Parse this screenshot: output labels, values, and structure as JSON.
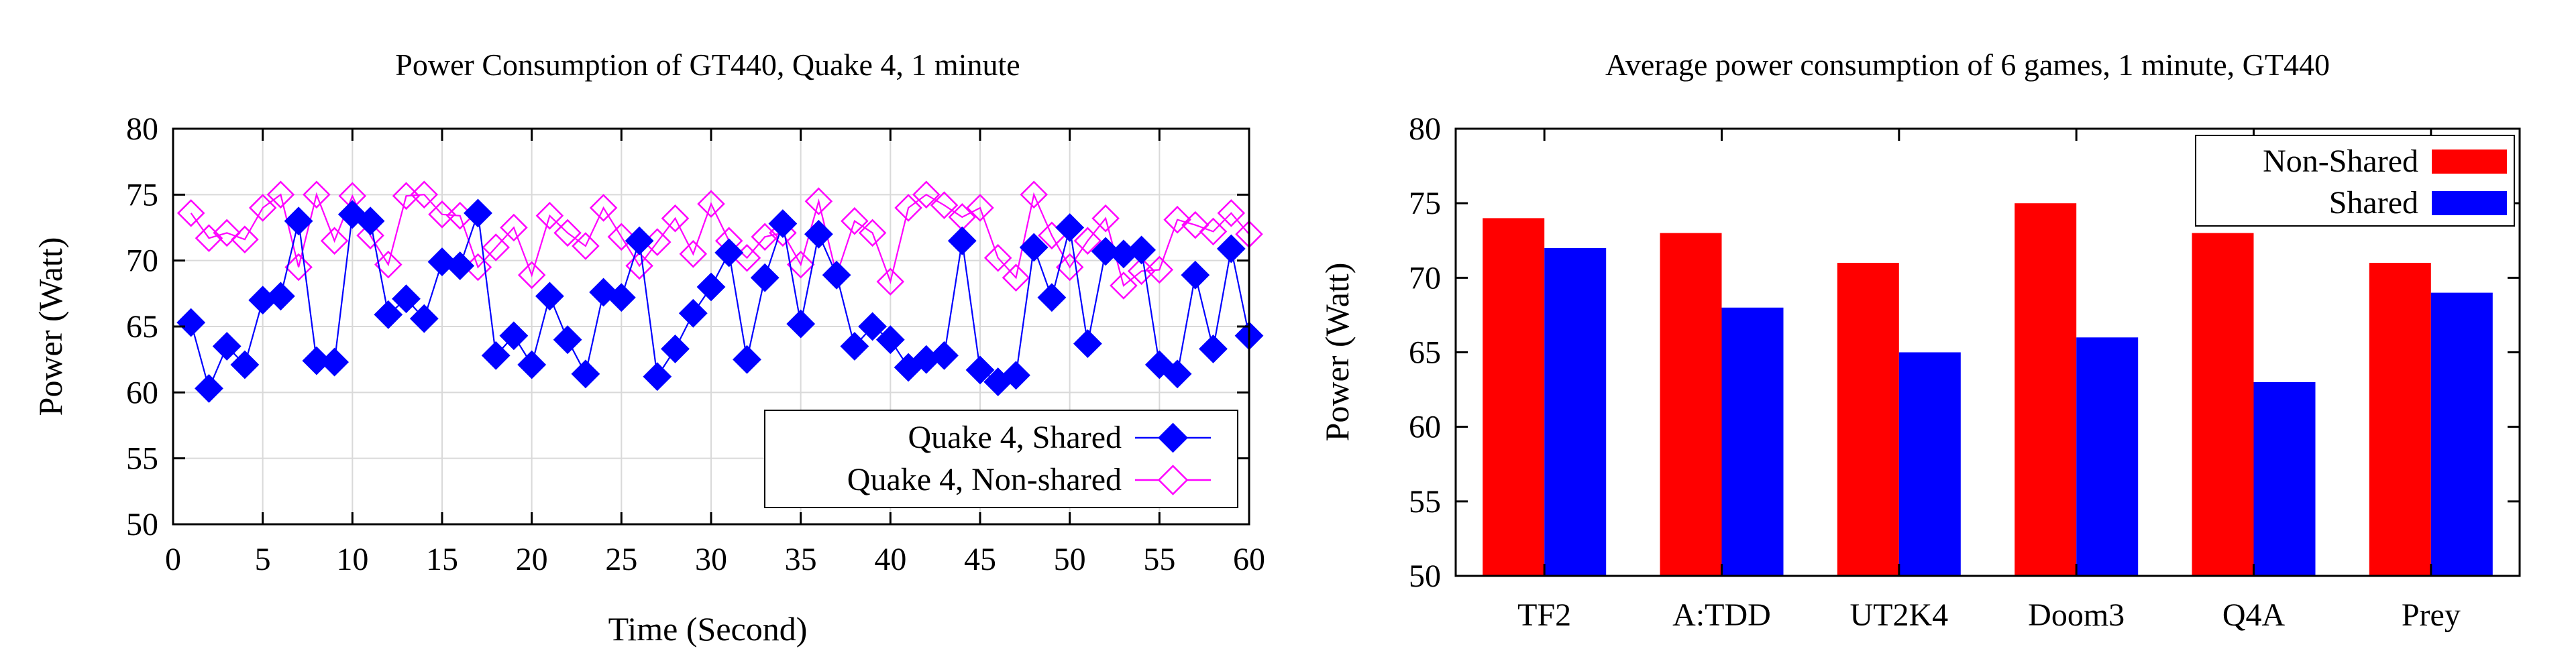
{
  "chart_data": [
    {
      "type": "line",
      "title": "Power Consumption of GT440, Quake 4, 1 minute",
      "xlabel": "Time (Second)",
      "ylabel": "Power (Watt)",
      "xlim": [
        0,
        60
      ],
      "ylim": [
        50,
        80
      ],
      "xticks": [
        0,
        5,
        10,
        15,
        20,
        25,
        30,
        35,
        40,
        45,
        50,
        55,
        60
      ],
      "yticks": [
        50,
        55,
        60,
        65,
        70,
        75,
        80
      ],
      "grid": true,
      "legend_position": "bottom-right",
      "x": [
        1,
        2,
        3,
        4,
        5,
        6,
        7,
        8,
        9,
        10,
        11,
        12,
        13,
        14,
        15,
        16,
        17,
        18,
        19,
        20,
        21,
        22,
        23,
        24,
        25,
        26,
        27,
        28,
        29,
        30,
        31,
        32,
        33,
        34,
        35,
        36,
        37,
        38,
        39,
        40,
        41,
        42,
        43,
        44,
        45,
        46,
        47,
        48,
        49,
        50,
        51,
        52,
        53,
        54,
        55,
        56,
        57,
        58,
        59,
        60
      ],
      "series": [
        {
          "name": "Quake 4, Shared",
          "color": "#0000ff",
          "marker": "filled-diamond",
          "values": [
            65.3,
            60.3,
            63.5,
            62.1,
            67,
            67.3,
            73,
            62.4,
            62.3,
            73.5,
            73,
            65.9,
            67.1,
            65.6,
            69.9,
            69.6,
            73.6,
            62.8,
            64.3,
            62.1,
            67.3,
            64,
            61.4,
            67.6,
            67.2,
            71.5,
            61.2,
            63.3,
            66,
            68,
            70.6,
            62.5,
            68.7,
            72.8,
            65.2,
            72,
            68.9,
            63.5,
            65,
            64,
            61.9,
            62.5,
            62.8,
            71.5,
            61.7,
            60.8,
            61.3,
            71,
            67.2,
            72.5,
            63.7,
            70.7,
            70.5,
            70.8,
            62.1,
            61.4,
            68.9,
            63.3,
            70.9,
            64.3
          ]
        },
        {
          "name": "Quake 4, Non-shared",
          "color": "#ff00ff",
          "marker": "open-diamond",
          "values": [
            73.6,
            71.7,
            72.1,
            71.6,
            74,
            75,
            69.5,
            75,
            71.5,
            74.9,
            71.9,
            69.7,
            74.9,
            75,
            73.5,
            73.4,
            69.5,
            71,
            72.5,
            68.9,
            73.4,
            72.1,
            71.1,
            74,
            71.8,
            69.6,
            71.4,
            73.2,
            70.5,
            74.3,
            71.5,
            70.2,
            71.8,
            72.1,
            69.7,
            74.5,
            68.9,
            73,
            72.1,
            68.4,
            74,
            75,
            74.2,
            73.3,
            74,
            70.2,
            68.7,
            75,
            71.9,
            69.5,
            71.5,
            73.2,
            68.1,
            69.2,
            69.3,
            73.1,
            72.7,
            72.2,
            73.6,
            72
          ]
        }
      ]
    },
    {
      "type": "bar",
      "title": "Average power consumption of 6 games, 1 minute, GT440",
      "xlabel": "",
      "ylabel": "Power (Watt)",
      "ylim": [
        50,
        80
      ],
      "yticks": [
        50,
        55,
        60,
        65,
        70,
        75,
        80
      ],
      "grid": false,
      "legend_position": "top-right",
      "categories": [
        "TF2",
        "A:TDD",
        "UT2K4",
        "Doom3",
        "Q4A",
        "Prey"
      ],
      "series": [
        {
          "name": "Non-Shared",
          "color": "#ff0000",
          "values": [
            74,
            73,
            71,
            75,
            73,
            71
          ]
        },
        {
          "name": "Shared",
          "color": "#0000ff",
          "values": [
            72,
            68,
            65,
            66,
            63,
            69
          ]
        }
      ]
    }
  ]
}
